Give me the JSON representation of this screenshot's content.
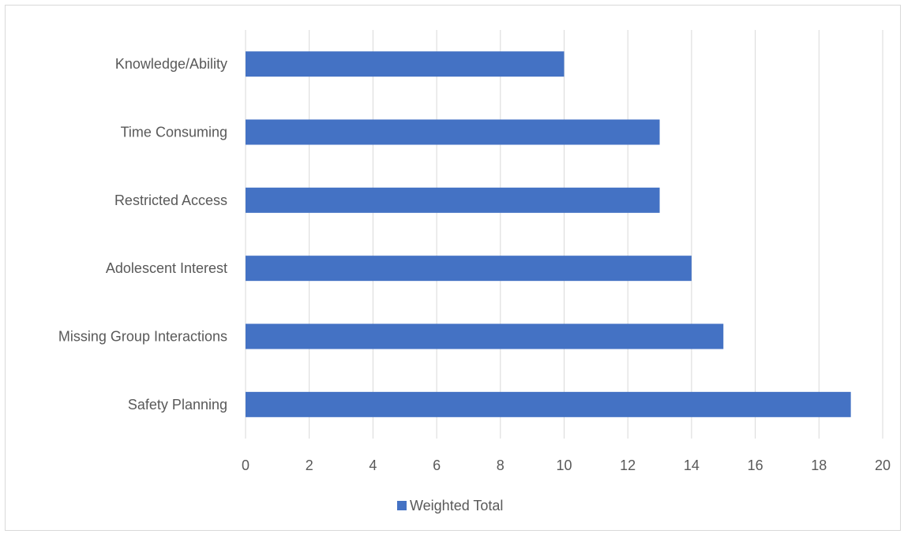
{
  "chart_data": {
    "type": "bar",
    "orientation": "horizontal",
    "categories": [
      "Knowledge/Ability",
      "Time Consuming",
      "Restricted Access",
      "Adolescent Interest",
      "Missing Group Interactions",
      "Safety Planning"
    ],
    "series": [
      {
        "name": "Weighted Total",
        "color": "#4472c4",
        "values": [
          10,
          13,
          13,
          14,
          15,
          19
        ]
      }
    ],
    "xlim": [
      0,
      20
    ],
    "xticks": [
      "0",
      "2",
      "4",
      "6",
      "8",
      "10",
      "12",
      "14",
      "16",
      "18",
      "20"
    ],
    "grid": "vertical",
    "legend": "bottom",
    "title": "",
    "xlabel": "",
    "ylabel": ""
  }
}
